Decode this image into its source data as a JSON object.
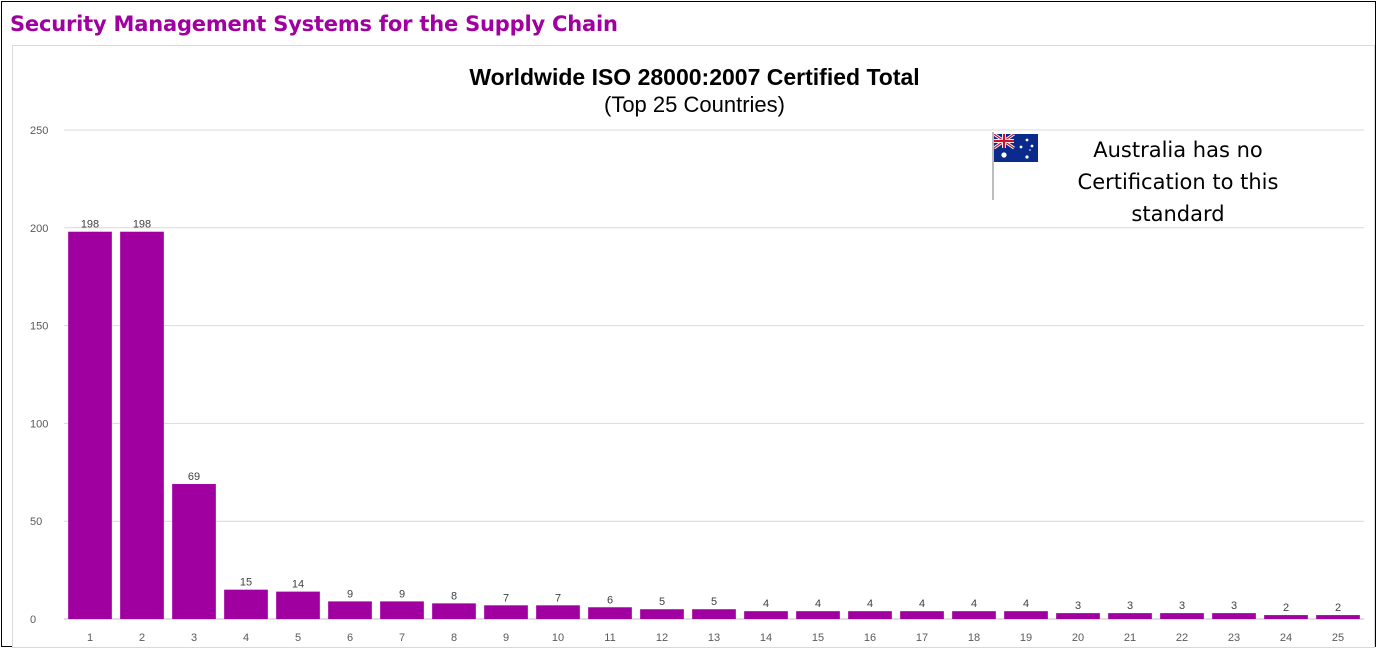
{
  "page": {
    "heading": "Security Management Systems for the Supply Chain"
  },
  "annotation": {
    "line1": "Australia has no",
    "line2": "Certification to this",
    "line3": "standard",
    "icon": "australian-flag-icon"
  },
  "colors": {
    "heading": "#a100a1",
    "bar": "#a100a1",
    "grid": "#d9d9d9"
  },
  "chart_data": {
    "type": "bar",
    "title": "Worldwide ISO 28000:2007 Certified Total",
    "subtitle": "(Top 25 Countries)",
    "xlabel": "",
    "ylabel": "",
    "categories": [
      "1",
      "2",
      "3",
      "4",
      "5",
      "6",
      "7",
      "8",
      "9",
      "10",
      "11",
      "12",
      "13",
      "14",
      "15",
      "16",
      "17",
      "18",
      "19",
      "20",
      "21",
      "22",
      "23",
      "24",
      "25"
    ],
    "values": [
      198,
      198,
      69,
      15,
      14,
      9,
      9,
      8,
      7,
      7,
      6,
      5,
      5,
      4,
      4,
      4,
      4,
      4,
      4,
      3,
      3,
      3,
      3,
      2,
      2
    ],
    "ylim": [
      0,
      250
    ],
    "yticks": [
      0,
      50,
      100,
      150,
      200,
      250
    ],
    "grid": true,
    "data_labels": true,
    "legend": "none"
  }
}
